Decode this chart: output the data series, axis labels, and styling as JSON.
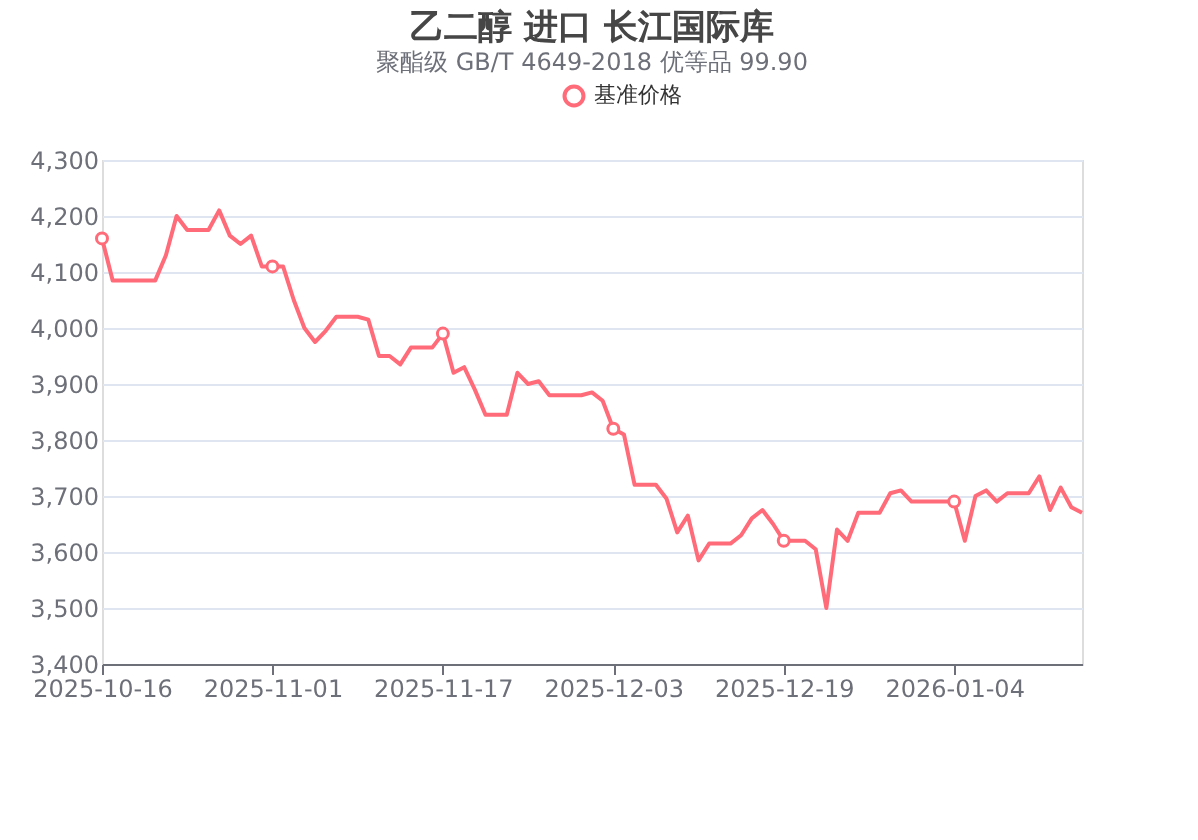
{
  "chart_data": {
    "type": "line",
    "title": "乙二醇 进口 长江国际库",
    "subtitle": "聚酯级 GB/T 4649-2018 优等品 99.90",
    "x": [
      "2025-10-16",
      "2025-10-17",
      "2025-10-21",
      "2025-10-22",
      "2025-10-23",
      "2025-10-24",
      "2025-10-26",
      "2025-10-27",
      "2025-10-28",
      "2025-10-29",
      "2025-10-30",
      "2025-10-31",
      "2025-11-01",
      "2025-11-02",
      "2025-11-03",
      "2025-11-04",
      "2025-11-05",
      "2025-11-06",
      "2025-11-07",
      "2025-11-09",
      "2025-11-10",
      "2025-11-11",
      "2025-11-12",
      "2025-11-13",
      "2025-11-14",
      "2025-11-16",
      "2025-11-17",
      "2025-11-18",
      "2025-11-19",
      "2025-11-20",
      "2025-11-21",
      "2025-11-23",
      "2025-11-24",
      "2025-11-25",
      "2025-11-26",
      "2025-11-27",
      "2025-11-30",
      "2025-12-01",
      "2025-12-02",
      "2025-12-03",
      "2025-12-04",
      "2025-12-05",
      "2025-12-07",
      "2025-12-08",
      "2025-12-09",
      "2025-12-10",
      "2025-12-11",
      "2025-12-12",
      "2025-12-14",
      "2025-12-15",
      "2025-12-16",
      "2025-12-17",
      "2025-12-18",
      "2025-12-19",
      "2025-12-21",
      "2025-12-22",
      "2025-12-23",
      "2025-12-24",
      "2025-12-25",
      "2025-12-26",
      "2025-12-28",
      "2025-12-29",
      "2025-12-30",
      "2025-12-31",
      "2026-01-04",
      "2026-01-05",
      "2026-01-06",
      "2026-01-07",
      "2026-01-08",
      "2026-01-09",
      "2026-01-11",
      "2026-01-12",
      "2026-01-13",
      "2026-01-14",
      "2026-01-15",
      "2026-01-16"
    ],
    "series": [
      {
        "name": "基准价格",
        "color": "#ff6b78",
        "values": [
          4160,
          4085,
          4085,
          4130,
          4200,
          4175,
          4175,
          4210,
          4165,
          4150,
          4165,
          4110,
          4110,
          4110,
          4050,
          4000,
          3975,
          3995,
          4020,
          4020,
          4015,
          3950,
          3950,
          3935,
          3965,
          3965,
          3990,
          3920,
          3930,
          3890,
          3845,
          3845,
          3920,
          3900,
          3905,
          3880,
          3880,
          3885,
          3870,
          3820,
          3810,
          3720,
          3720,
          3695,
          3635,
          3665,
          3585,
          3615,
          3615,
          3630,
          3660,
          3675,
          3650,
          3620,
          3620,
          3605,
          3500,
          3640,
          3620,
          3670,
          3670,
          3705,
          3710,
          3690,
          3690,
          3620,
          3700,
          3710,
          3690,
          3705,
          3705,
          3735,
          3675,
          3715,
          3680,
          3670
        ]
      }
    ],
    "xlim": [
      "2025-10-16",
      "2026-01-16"
    ],
    "xticks": [
      "2025-10-16",
      "2025-11-01",
      "2025-11-17",
      "2025-12-03",
      "2025-12-19",
      "2026-01-04"
    ],
    "ylim": [
      3400,
      4300
    ],
    "yticks": [
      {
        "value": 3400,
        "label": "3,400"
      },
      {
        "value": 3500,
        "label": "3,500"
      },
      {
        "value": 3600,
        "label": "3,600"
      },
      {
        "value": 3700,
        "label": "3,700"
      },
      {
        "value": 3800,
        "label": "3,800"
      },
      {
        "value": 3900,
        "label": "3,900"
      },
      {
        "value": 4000,
        "label": "4,000"
      },
      {
        "value": 4100,
        "label": "4,100"
      },
      {
        "value": 4200,
        "label": "4,200"
      },
      {
        "value": 4300,
        "label": "4,300"
      }
    ],
    "grid": "y",
    "legend": "top",
    "line_style": "solid"
  }
}
